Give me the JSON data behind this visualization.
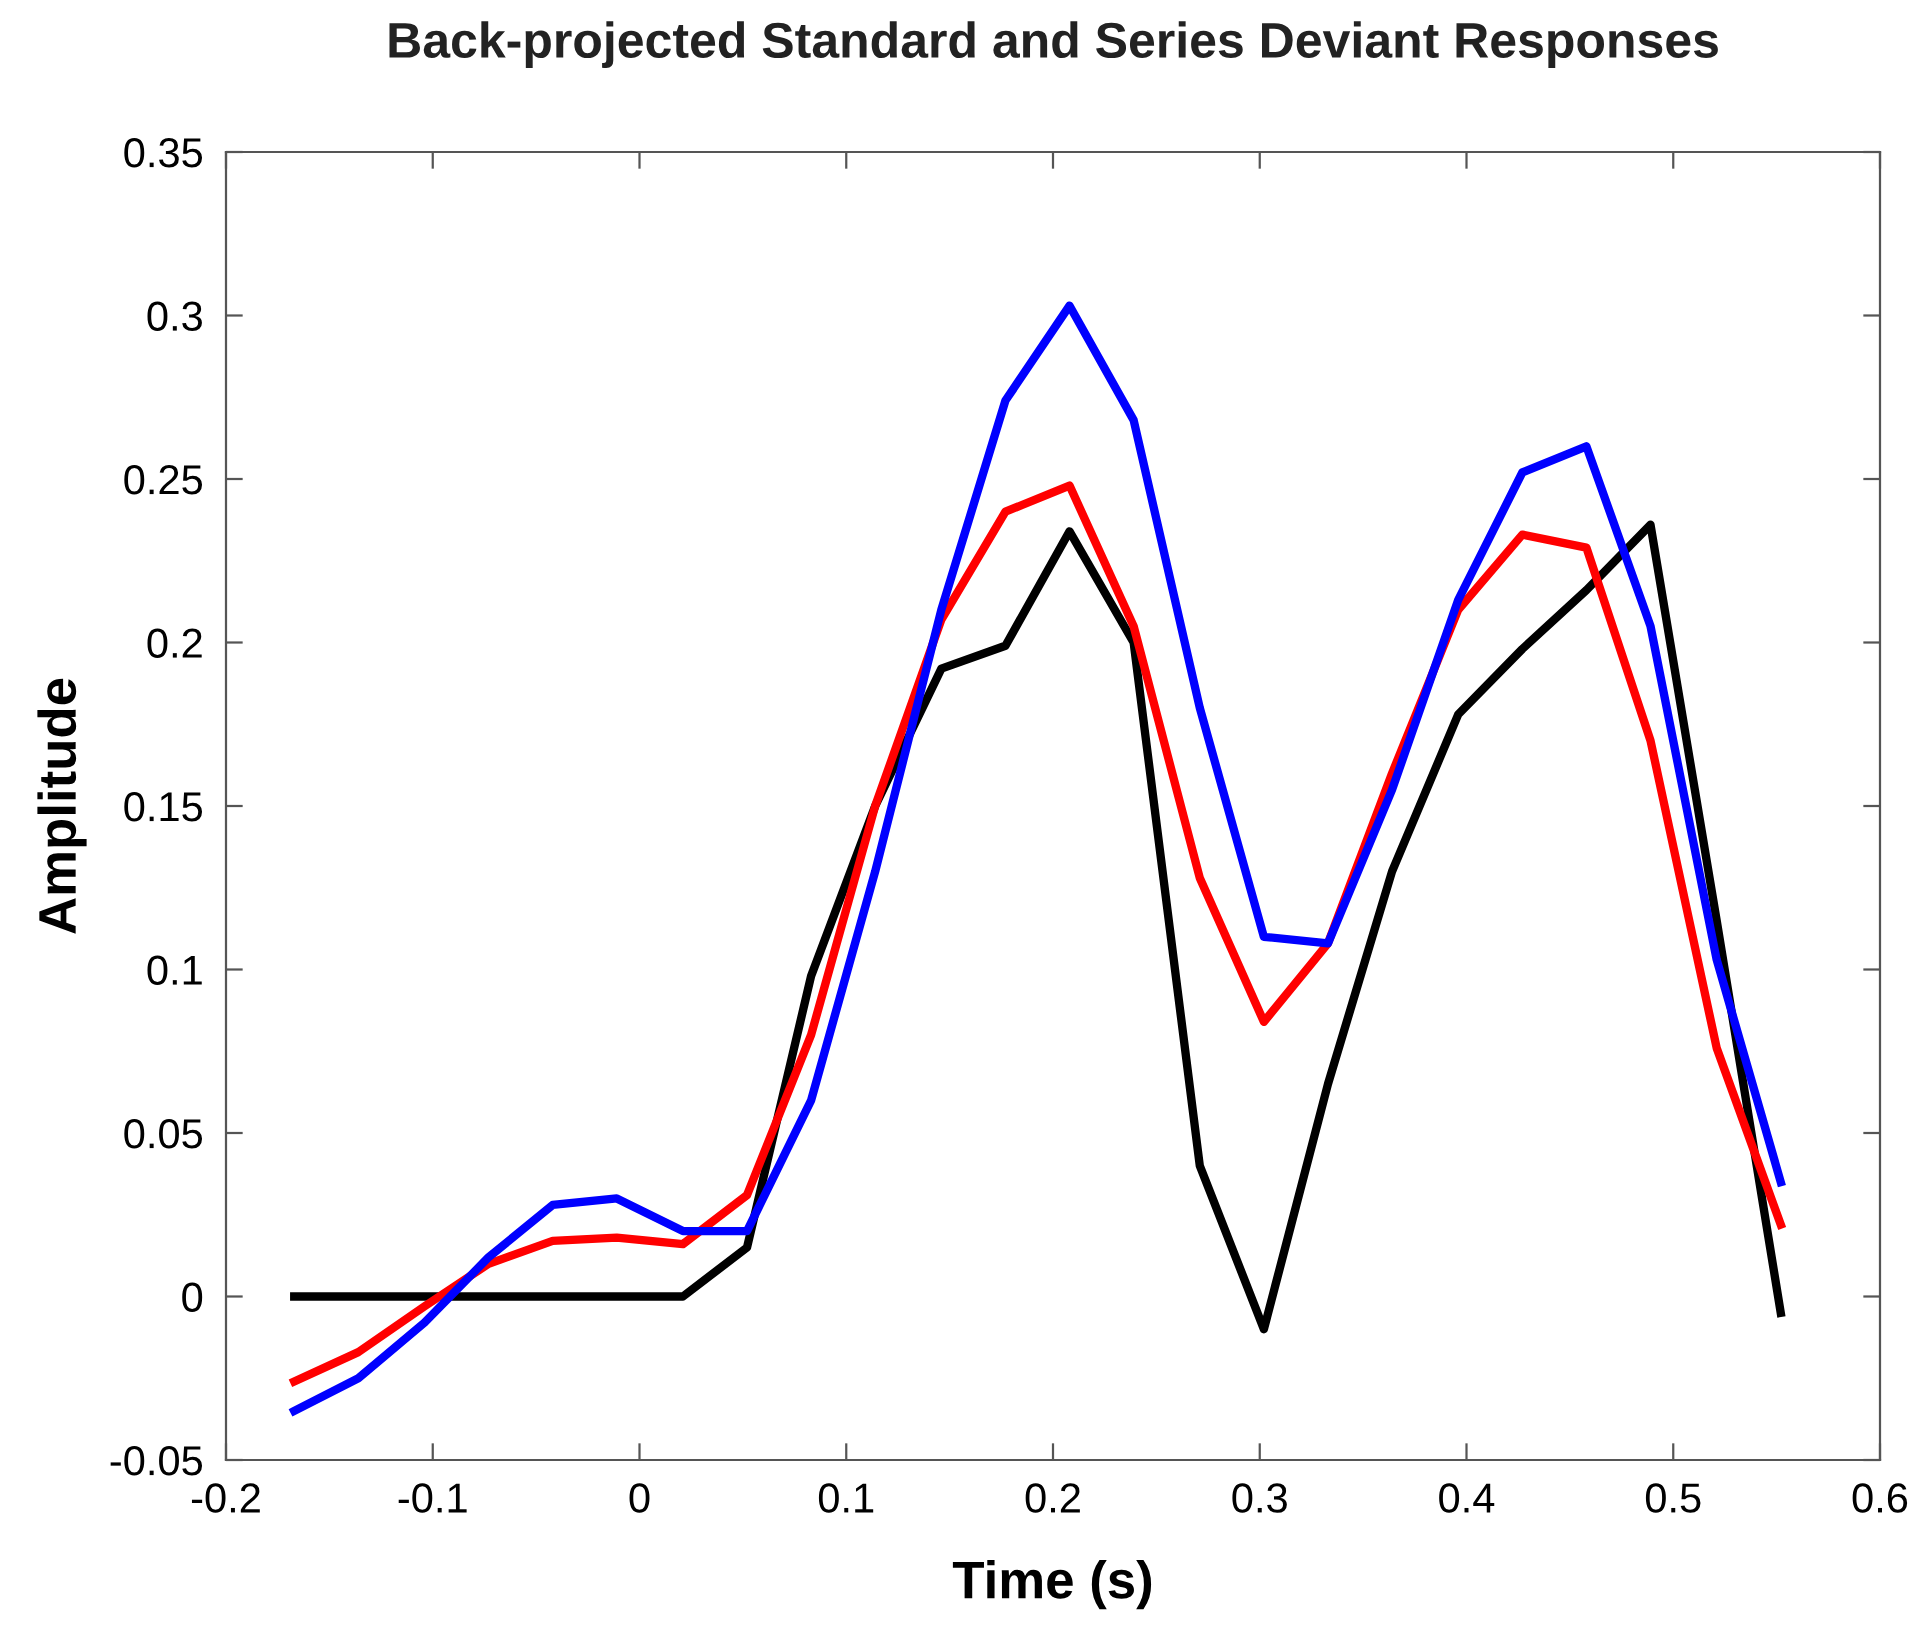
{
  "chart_data": {
    "type": "line",
    "title": "Back-projected Standard and Series Deviant Responses",
    "xlabel": "Time (s)",
    "ylabel": "Amplitude",
    "x": [
      -0.167,
      -0.136,
      -0.104,
      -0.073,
      -0.042,
      -0.011,
      0.021,
      0.052,
      0.083,
      0.114,
      0.146,
      0.177,
      0.208,
      0.239,
      0.271,
      0.302,
      0.333,
      0.364,
      0.396,
      0.427,
      0.458,
      0.489,
      0.521,
      0.552
    ],
    "series": [
      {
        "color": "#000000",
        "values": [
          0,
          0,
          0,
          0,
          0,
          0,
          0,
          0.015,
          0.098,
          0.15,
          0.192,
          0.199,
          0.234,
          0.2,
          0.04,
          -0.01,
          0.065,
          0.13,
          0.178,
          0.198,
          0.216,
          0.236,
          0.115,
          -0.005
        ]
      },
      {
        "color": "#ff0000",
        "values": [
          -0.026,
          -0.017,
          -0.003,
          0.01,
          0.017,
          0.018,
          0.016,
          0.031,
          0.08,
          0.15,
          0.207,
          0.24,
          0.248,
          0.205,
          0.128,
          0.084,
          0.108,
          0.16,
          0.21,
          0.233,
          0.229,
          0.17,
          0.076,
          0.022
        ]
      },
      {
        "color": "#0000ff",
        "values": [
          -0.035,
          -0.025,
          -0.008,
          0.012,
          0.028,
          0.03,
          0.02,
          0.02,
          0.06,
          0.13,
          0.21,
          0.274,
          0.303,
          0.268,
          0.18,
          0.11,
          0.108,
          0.155,
          0.213,
          0.252,
          0.26,
          0.205,
          0.103,
          0.035
        ]
      }
    ],
    "xlim": [
      -0.2,
      0.6
    ],
    "xticks": [
      -0.2,
      -0.1,
      0,
      0.1,
      0.2,
      0.3,
      0.4,
      0.5,
      0.6
    ],
    "ylim": [
      -0.05,
      0.35
    ],
    "yticks": [
      -0.05,
      0,
      0.05,
      0.1,
      0.15,
      0.2,
      0.25,
      0.3,
      0.35
    ],
    "grid": false,
    "line_style": "solid",
    "marker": "none"
  }
}
